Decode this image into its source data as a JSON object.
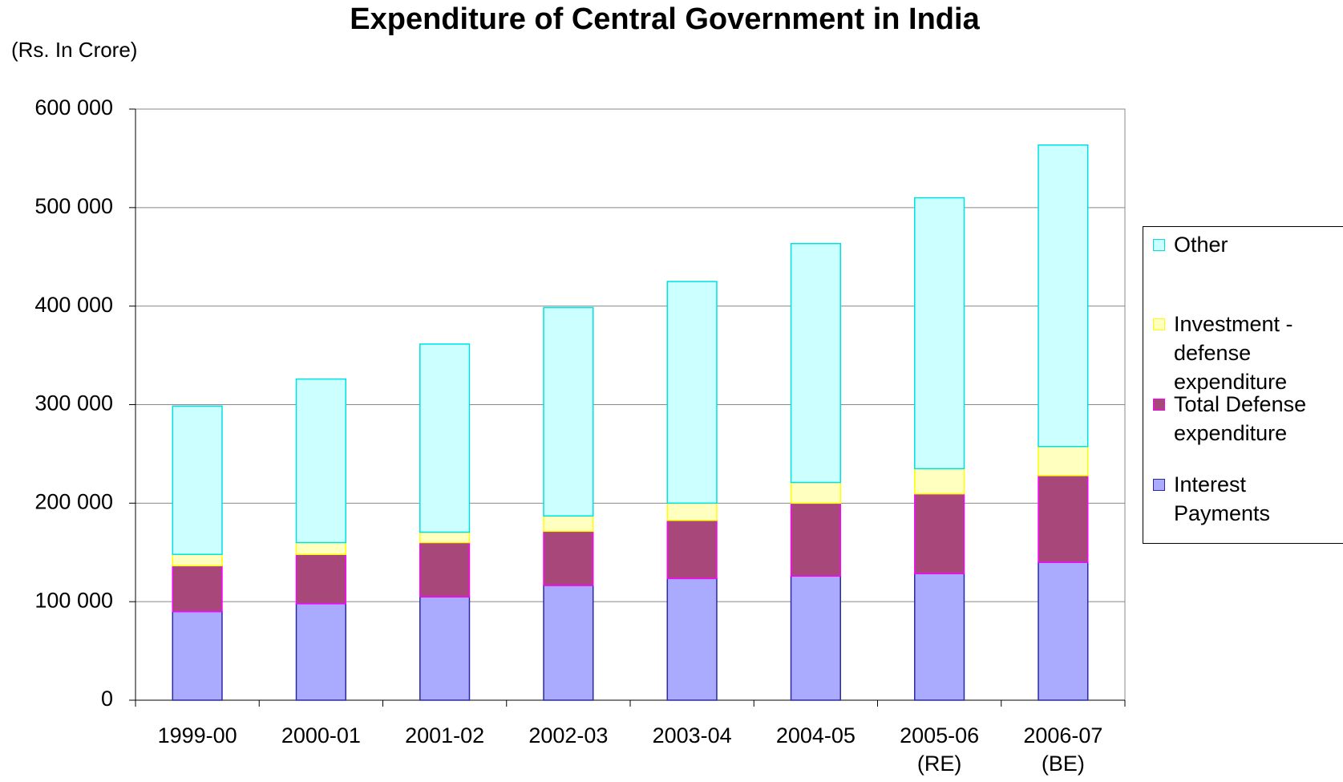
{
  "chart_data": {
    "type": "stacked_bar",
    "title": "Expenditure of Central Government in India",
    "y_label": "(Rs. In Crore)",
    "categories": [
      "1999-00",
      "2000-01",
      "2001-02",
      "2002-03",
      "2003-04",
      "2004-05",
      "2005-06 (RE)",
      "2006-07 (BE)"
    ],
    "series": [
      {
        "name": "Interest Payments",
        "color": "#aaaaff",
        "stroke": "#2a2aa0",
        "values": [
          90000,
          98000,
          105000,
          116500,
          123500,
          126000,
          128500,
          140000
        ]
      },
      {
        "name": "Total Defense expenditure",
        "color": "#a8487a",
        "stroke": "#ff00ff",
        "values": [
          46500,
          50000,
          55000,
          55000,
          59000,
          74000,
          81000,
          88000
        ]
      },
      {
        "name": "Investment - defense expenditure",
        "color": "#ffffc0",
        "stroke": "#ffff00",
        "values": [
          11500,
          12000,
          10500,
          15500,
          17500,
          21000,
          25500,
          29500
        ]
      },
      {
        "name": "Other",
        "color": "#ccffff",
        "stroke": "#00e0e0",
        "values": [
          150500,
          166000,
          191000,
          211500,
          225000,
          242500,
          275000,
          306000
        ]
      }
    ],
    "ylim": [
      0,
      600000
    ],
    "yticks": [
      0,
      {
        "value": 100000,
        "label": "100 000"
      },
      {
        "value": 200000,
        "label": "200 000"
      },
      {
        "value": 300000,
        "label": "300 000"
      },
      {
        "value": 400000,
        "label": "400 000"
      },
      {
        "value": 500000,
        "label": "500 000"
      },
      {
        "value": 600000,
        "label": "600 000"
      }
    ],
    "grid": true
  }
}
